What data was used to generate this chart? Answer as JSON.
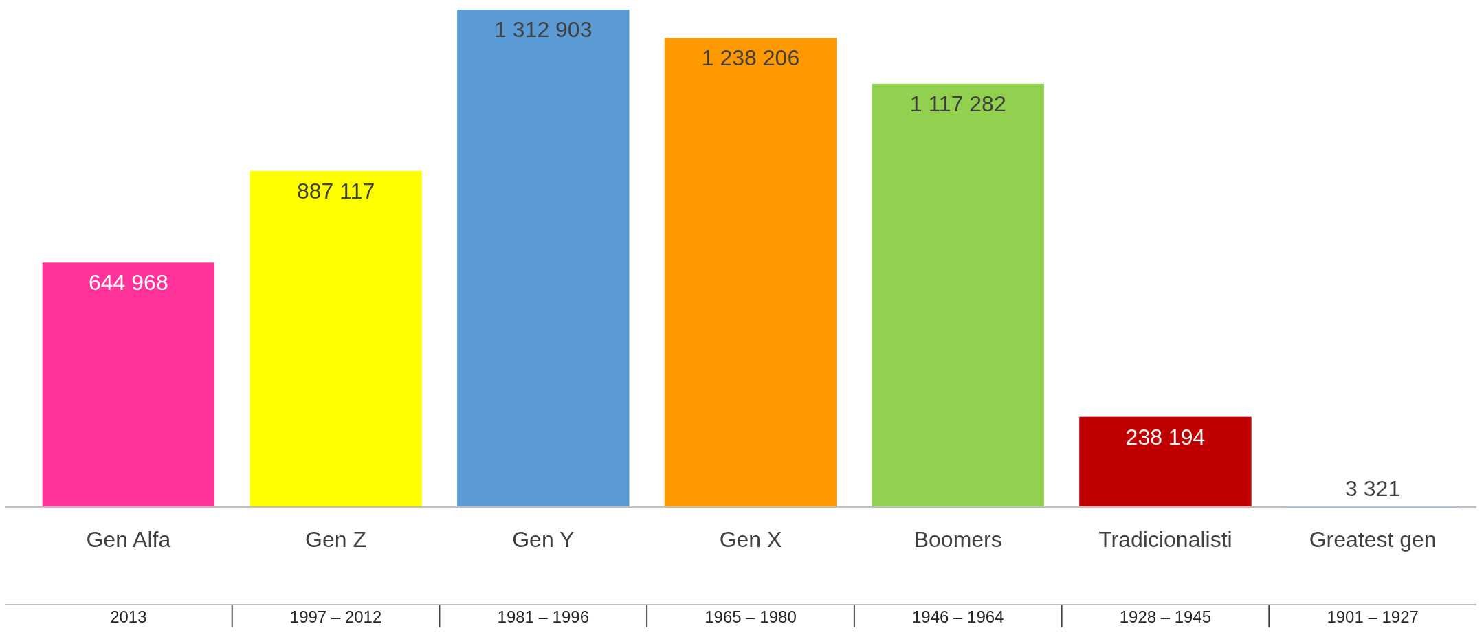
{
  "chart_data": {
    "type": "bar",
    "categories": [
      "Gen Alfa",
      "Gen Z",
      "Gen Y",
      "Gen X",
      "Boomers",
      "Tradicionalisti",
      "Greatest gen"
    ],
    "values": [
      644968,
      887117,
      1312903,
      1238206,
      1117282,
      238194,
      3321
    ],
    "colors": [
      "#ff3399",
      "#ffff00",
      "#5b9bd5",
      "#ff9900",
      "#92d050",
      "#c00000",
      "#9dc3e6"
    ],
    "value_labels": [
      "644 968",
      "887 117",
      "1 312 903",
      "1 238 206",
      "1 117 282",
      "238 194",
      "3 321"
    ],
    "annotations": [
      "2013",
      "1997 – 2012",
      "1981 – 1996",
      "1965 – 1980",
      "1946 – 1964",
      "1928 – 1945",
      "1901 – 1927"
    ]
  }
}
